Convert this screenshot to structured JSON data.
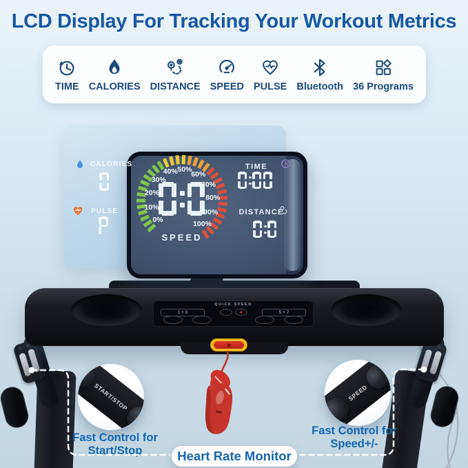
{
  "title": "LCD Display For Tracking Your Workout Metrics",
  "features": [
    {
      "label": "TIME",
      "icon": "clock-icon"
    },
    {
      "label": "CALORIES",
      "icon": "flame-icon"
    },
    {
      "label": "DISTANCE",
      "icon": "route-pin-icon"
    },
    {
      "label": "SPEED",
      "icon": "speedometer-icon"
    },
    {
      "label": "PULSE",
      "icon": "heart-pulse-icon"
    },
    {
      "label": "Bluetooth",
      "icon": "bluetooth-icon"
    },
    {
      "label": "36 Programs",
      "icon": "programs-grid-icon"
    }
  ],
  "lcd": {
    "calories": {
      "label": "CALORIES",
      "value": "0",
      "icon": "flame-icon"
    },
    "pulse": {
      "label": "PULSE",
      "value": "P",
      "icon": "heart-icon"
    },
    "speed_gauge": {
      "label": "SPEED",
      "value": "0:0",
      "tick_labels": [
        "0%",
        "10%",
        "20%",
        "30%",
        "40%",
        "50%",
        "60%",
        "70%",
        "80%",
        "90%",
        "100%"
      ]
    },
    "time": {
      "label": "TIME",
      "value": "0:00",
      "icon": "clock-icon"
    },
    "distance": {
      "label": "DISTANCE",
      "value": "0:0",
      "icon": "route-icon"
    }
  },
  "console": {
    "quick_speed_label": "QUICK SPEED",
    "left_keys": "1 + 3",
    "right_keys": "5 + 7"
  },
  "callouts": {
    "left": {
      "pad_line1": "START",
      "pad_separator": "/",
      "pad_line2": "STOP",
      "caption_line1": "Fast Control for",
      "caption_line2": "Start/Stop"
    },
    "right": {
      "pad_plus": "+",
      "pad_label": "SPEED",
      "pad_minus": "−",
      "caption_line1": "Fast Control for",
      "caption_line2": "Speed+/-"
    },
    "heart_rate_label": "Heart Rate Monitor"
  },
  "colors": {
    "title_blue": "#1957a3",
    "caption_blue": "#1566ad",
    "icon_navy": "#1b4a7b",
    "gauge_green": "#79c531",
    "gauge_yellow": "#f2cb1d",
    "gauge_orange": "#f2981d",
    "gauge_red": "#e53a1e",
    "lcd_bg": "#31405c",
    "safety_key_yellow": "#f2bd1e",
    "safety_key_red": "#cf2a1c",
    "heart_clip_red": "#c6352c"
  }
}
